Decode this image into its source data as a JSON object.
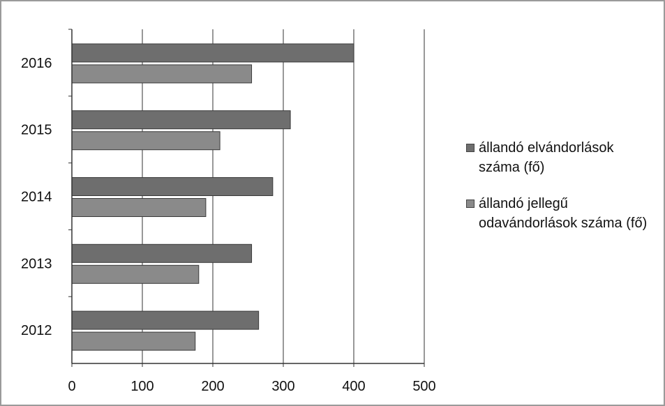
{
  "chart_data": {
    "type": "bar",
    "orientation": "horizontal",
    "categories": [
      "2012",
      "2013",
      "2014",
      "2015",
      "2016"
    ],
    "series": [
      {
        "name": "állandó elvándorlások száma (fő)",
        "values": [
          265,
          255,
          285,
          310,
          400
        ],
        "color": "#6e6e6e"
      },
      {
        "name": "állandó jellegű odavándorlások száma (fő)",
        "values": [
          175,
          180,
          190,
          210,
          255
        ],
        "color": "#8a8a8a"
      }
    ],
    "xlim": [
      0,
      500
    ],
    "xticks": [
      "0",
      "100",
      "200",
      "300",
      "400",
      "500"
    ],
    "grid": "vertical",
    "legend_position": "right"
  }
}
